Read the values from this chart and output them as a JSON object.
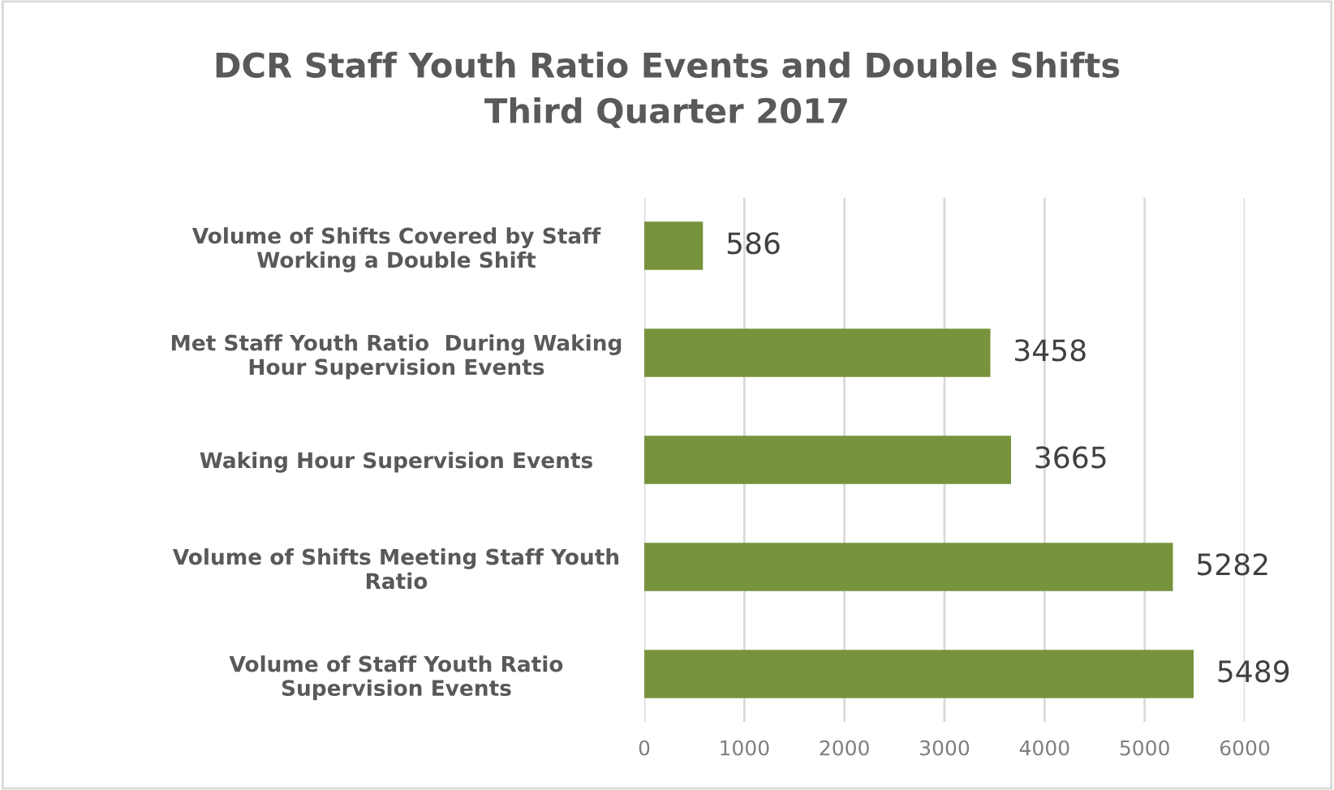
{
  "chart_data": {
    "type": "bar",
    "orientation": "horizontal",
    "title": "DCR Staff Youth Ratio Events and Double Shifts\nThird Quarter 2017",
    "categories": [
      "Volume of Shifts Covered by Staff\nWorking a Double Shift",
      "Met Staff Youth Ratio  During Waking\nHour Supervision Events",
      "Waking Hour Supervision Events",
      "Volume of Shifts Meeting Staff Youth\nRatio",
      "Volume of Staff Youth Ratio\nSupervision Events"
    ],
    "values": [
      586,
      3458,
      3665,
      5282,
      5489
    ],
    "color": "#77933c",
    "xlim": [
      0,
      6000
    ],
    "xticks": [
      0,
      1000,
      2000,
      3000,
      4000,
      5000,
      6000
    ],
    "grid": "x",
    "data_labels": true
  }
}
